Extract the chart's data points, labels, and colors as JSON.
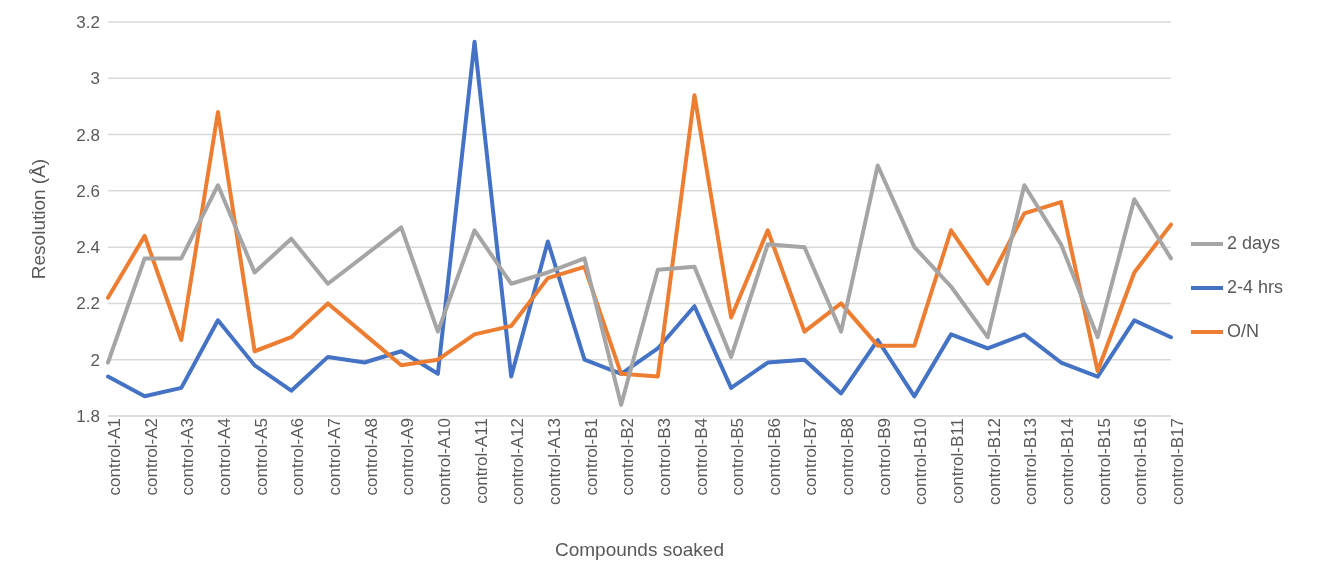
{
  "chart_data": {
    "type": "line",
    "xlabel": "Compounds soaked",
    "ylabel": "Resolution (Å)",
    "categories": [
      "control-A1",
      "control-A2",
      "control-A3",
      "control-A4",
      "control-A5",
      "control-A6",
      "control-A7",
      "control-A8",
      "control-A9",
      "control-A10",
      "control-A11",
      "control-A12",
      "control-A13",
      "control-B1",
      "control-B2",
      "control-B3",
      "control-B4",
      "control-B5",
      "control-B6",
      "control-B7",
      "control-B8",
      "control-B9",
      "control-B10",
      "control-B11",
      "control-B12",
      "control-B13",
      "control-B14",
      "control-B15",
      "control-B16",
      "control-B17"
    ],
    "series": [
      {
        "name": "2-4 hrs",
        "color": "#4472c4",
        "values": [
          1.94,
          1.87,
          1.9,
          2.14,
          1.98,
          1.89,
          2.01,
          1.99,
          2.03,
          1.95,
          3.13,
          1.94,
          2.42,
          2.0,
          1.95,
          2.04,
          2.19,
          1.9,
          1.99,
          2.0,
          1.88,
          2.07,
          1.87,
          2.09,
          2.04,
          2.09,
          1.99,
          1.94,
          2.14,
          2.08
        ]
      },
      {
        "name": "O/N",
        "color": "#ed7d31",
        "values": [
          2.22,
          2.44,
          2.07,
          2.88,
          2.03,
          2.08,
          2.2,
          2.09,
          1.98,
          2.0,
          2.09,
          2.12,
          2.29,
          2.33,
          1.95,
          1.94,
          2.94,
          2.15,
          2.46,
          2.1,
          2.2,
          2.05,
          2.05,
          2.46,
          2.27,
          2.52,
          2.56,
          1.96,
          2.31,
          2.48
        ]
      },
      {
        "name": "2 days",
        "color": "#a5a5a5",
        "values": [
          1.99,
          2.36,
          2.36,
          2.62,
          2.31,
          2.43,
          2.27,
          2.37,
          2.47,
          2.1,
          2.46,
          2.27,
          2.31,
          2.36,
          1.84,
          2.32,
          2.33,
          2.01,
          2.41,
          2.4,
          2.1,
          2.69,
          2.4,
          2.26,
          2.08,
          2.62,
          2.41,
          2.08,
          2.57,
          2.36
        ]
      }
    ],
    "ylim": [
      1.8,
      3.2
    ],
    "yticks": [
      1.8,
      2,
      2.2,
      2.4,
      2.6,
      2.8,
      3,
      3.2
    ],
    "grid": "y",
    "legend": "right",
    "marker": "none",
    "line_style": "solid"
  }
}
